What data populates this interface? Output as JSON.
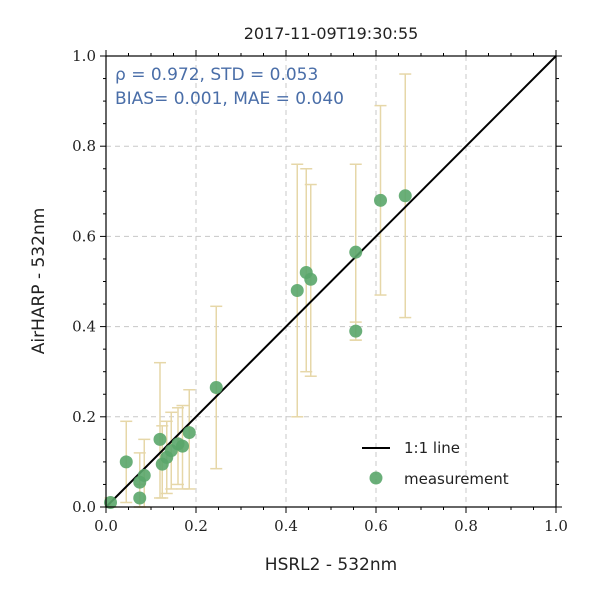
{
  "chart_data": {
    "type": "scatter",
    "title": "2017-11-09T19:30:55",
    "xlabel": "HSRL2 - 532nm",
    "ylabel": "AirHARP - 532nm",
    "xlim": [
      0,
      1.0
    ],
    "ylim": [
      0,
      1.0
    ],
    "grid": true,
    "legend_position": "bottom-right",
    "xticks": [
      "0.0",
      "0.2",
      "0.4",
      "0.6",
      "0.8",
      "1.0"
    ],
    "yticks": [
      "0.0",
      "0.2",
      "0.4",
      "0.6",
      "0.8",
      "1.0"
    ],
    "stats_line1": "ρ = 0.972, STD = 0.053",
    "stats_line2": "BIAS= 0.001, MAE = 0.040",
    "reference_line": {
      "label": "1:1 line",
      "from": [
        0,
        0
      ],
      "to": [
        1,
        1
      ],
      "color": "#000000"
    },
    "series": [
      {
        "name": "measurement",
        "color": "#5aa66a",
        "error_color": "#e6d7a8",
        "points": [
          {
            "x": 0.01,
            "y": 0.01,
            "ylo": 0.0,
            "yhi": 0.02
          },
          {
            "x": 0.045,
            "y": 0.1,
            "ylo": 0.01,
            "yhi": 0.19
          },
          {
            "x": 0.075,
            "y": 0.02,
            "ylo": 0.0,
            "yhi": 0.05
          },
          {
            "x": 0.075,
            "y": 0.055,
            "ylo": 0.0,
            "yhi": 0.12
          },
          {
            "x": 0.085,
            "y": 0.07,
            "ylo": 0.0,
            "yhi": 0.15
          },
          {
            "x": 0.12,
            "y": 0.15,
            "ylo": 0.02,
            "yhi": 0.32
          },
          {
            "x": 0.125,
            "y": 0.095,
            "ylo": 0.02,
            "yhi": 0.18
          },
          {
            "x": 0.135,
            "y": 0.11,
            "ylo": 0.03,
            "yhi": 0.19
          },
          {
            "x": 0.145,
            "y": 0.125,
            "ylo": 0.04,
            "yhi": 0.21
          },
          {
            "x": 0.16,
            "y": 0.14,
            "ylo": 0.05,
            "yhi": 0.22
          },
          {
            "x": 0.17,
            "y": 0.135,
            "ylo": 0.04,
            "yhi": 0.225
          },
          {
            "x": 0.185,
            "y": 0.165,
            "ylo": 0.04,
            "yhi": 0.26
          },
          {
            "x": 0.245,
            "y": 0.265,
            "ylo": 0.085,
            "yhi": 0.445
          },
          {
            "x": 0.425,
            "y": 0.48,
            "ylo": 0.2,
            "yhi": 0.76
          },
          {
            "x": 0.445,
            "y": 0.52,
            "ylo": 0.3,
            "yhi": 0.75
          },
          {
            "x": 0.455,
            "y": 0.505,
            "ylo": 0.29,
            "yhi": 0.715
          },
          {
            "x": 0.555,
            "y": 0.565,
            "ylo": 0.37,
            "yhi": 0.76
          },
          {
            "x": 0.555,
            "y": 0.39,
            "ylo": 0.37,
            "yhi": 0.41
          },
          {
            "x": 0.61,
            "y": 0.68,
            "ylo": 0.47,
            "yhi": 0.89
          },
          {
            "x": 0.665,
            "y": 0.69,
            "ylo": 0.42,
            "yhi": 0.96
          }
        ]
      }
    ]
  }
}
